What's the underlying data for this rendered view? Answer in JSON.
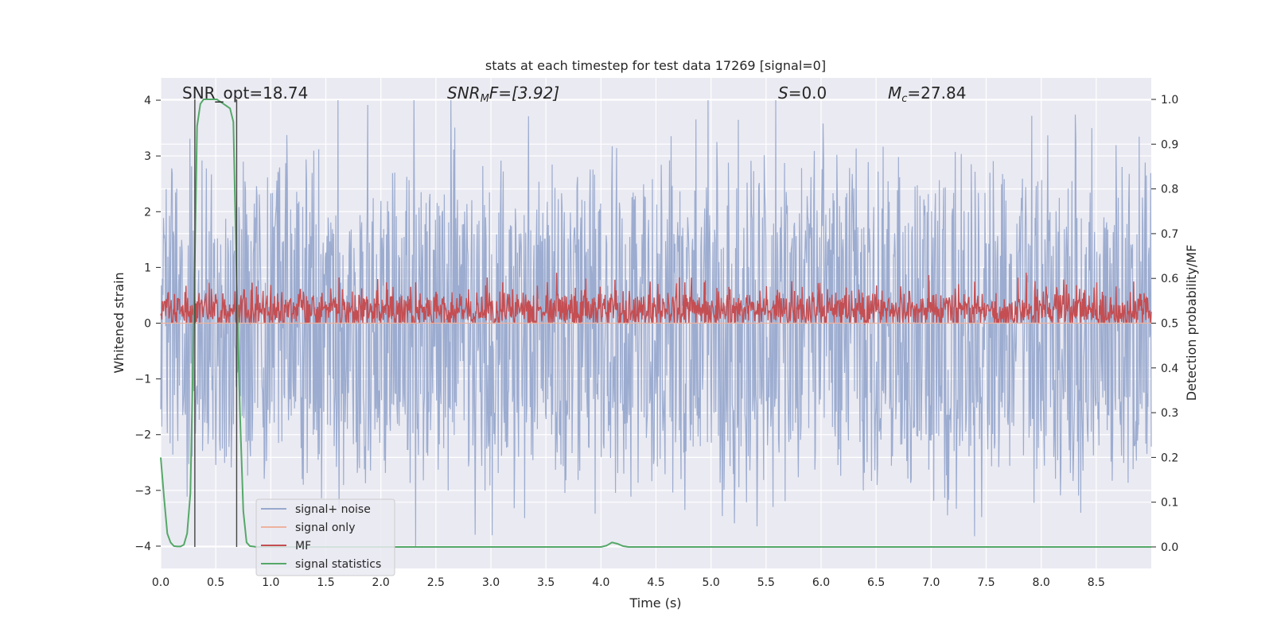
{
  "chart_data": {
    "type": "line",
    "title": "stats at each timestep for test data 17269 [signal=0]",
    "xlabel": "Time (s)",
    "ylabel": "Whitened strain",
    "ylabel_right": "Detection probability/MF",
    "xlim": [
      0.0,
      9.0
    ],
    "ylim": [
      -4.4,
      4.4
    ],
    "ylim_right": [
      -0.048,
      1.048
    ],
    "xticks": [
      "0.0",
      "0.5",
      "1.0",
      "1.5",
      "2.0",
      "2.5",
      "3.0",
      "3.5",
      "4.0",
      "4.5",
      "5.0",
      "5.5",
      "6.0",
      "6.5",
      "7.0",
      "7.5",
      "8.0",
      "8.5"
    ],
    "yticks": [
      "4",
      "3",
      "2",
      "1",
      "0",
      "−1",
      "−2",
      "−3",
      "−4"
    ],
    "yticks_right": [
      "1.0",
      "0.9",
      "0.8",
      "0.7",
      "0.6",
      "0.5",
      "0.4",
      "0.3",
      "0.2",
      "0.1",
      "0.0"
    ],
    "grid": true,
    "legend_position": "lower-left",
    "annotations": {
      "snr_opt": "SNR_opt=18.74",
      "snr_mf_sym": "SNR",
      "snr_mf_sub": "M",
      "snr_mf_rest": "F=[3.92]",
      "s_sym": "S",
      "s_rest": "=0.0",
      "mc_sym": "M",
      "mc_sub": "c",
      "mc_rest": "=27.84"
    },
    "vlines_x": [
      0.31,
      0.69
    ],
    "series": [
      {
        "name": "signal+ noise",
        "axis": "left",
        "color": "#98a9ce",
        "description_stats": {
          "mean": 0,
          "std": 1.0,
          "min": -4.0,
          "max": 4.0,
          "n": 1800
        }
      },
      {
        "name": "signal only",
        "axis": "left",
        "color": "#eeb29e",
        "x": [
          0.0,
          9.0
        ],
        "values": [
          0,
          0
        ]
      },
      {
        "name": "MF",
        "axis": "right",
        "color": "#c44e52",
        "description_stats": {
          "mean": 0.53,
          "std": 0.025,
          "min": 0.5,
          "max": 0.62,
          "n": 1800
        }
      },
      {
        "name": "signal statistics",
        "axis": "right",
        "color": "#55a868",
        "x": [
          0.0,
          0.03,
          0.06,
          0.09,
          0.12,
          0.15,
          0.18,
          0.21,
          0.24,
          0.27,
          0.3,
          0.33,
          0.36,
          0.39,
          0.42,
          0.45,
          0.48,
          0.51,
          0.54,
          0.57,
          0.6,
          0.63,
          0.66,
          0.69,
          0.72,
          0.75,
          0.78,
          0.81,
          0.84,
          0.87,
          0.9,
          1.0,
          1.5,
          2.0,
          2.5,
          3.0,
          3.5,
          4.0,
          4.05,
          4.1,
          4.15,
          4.2,
          4.25,
          4.5,
          5.0,
          5.5,
          6.0,
          6.5,
          7.0,
          7.5,
          8.0,
          8.5,
          9.0
        ],
        "values": [
          0.2,
          0.11,
          0.03,
          0.01,
          0.002,
          0.001,
          0.001,
          0.005,
          0.03,
          0.12,
          0.5,
          0.94,
          0.99,
          1.0,
          1.0,
          1.0,
          1.0,
          1.0,
          0.995,
          0.99,
          0.985,
          0.98,
          0.95,
          0.6,
          0.3,
          0.08,
          0.01,
          0.002,
          0.001,
          0.0,
          0.0,
          0.0,
          0.0,
          0.0,
          0.0,
          0.0,
          0.0,
          0.0,
          0.003,
          0.01,
          0.007,
          0.002,
          0.0,
          0.0,
          0.0,
          0.0,
          0.0,
          0.0,
          0.0,
          0.0,
          0.0,
          0.0,
          0.0
        ]
      }
    ]
  }
}
